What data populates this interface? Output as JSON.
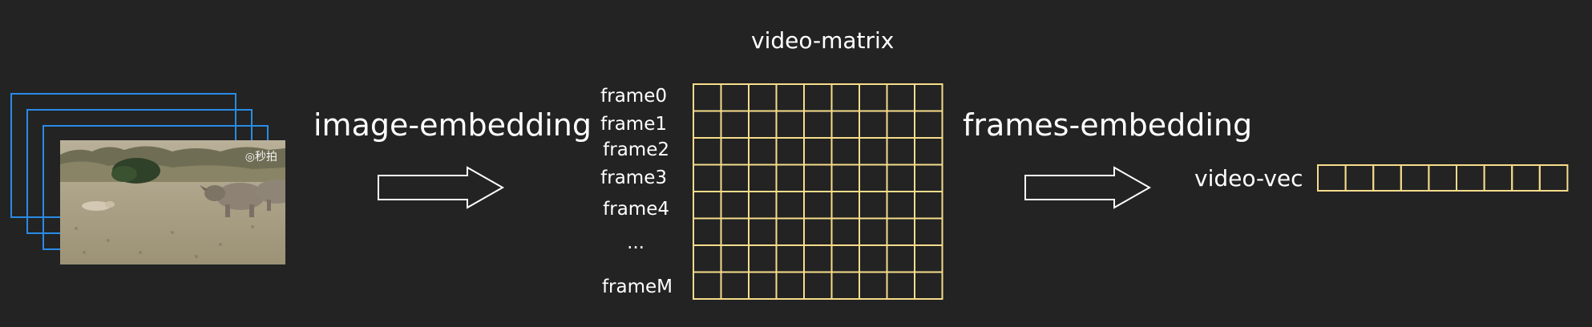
{
  "title": "video-matrix",
  "left_label": "image-embedding",
  "right_label": "frames-embedding",
  "vec_label": "video-vec",
  "photo_watermark": "◎秒拍",
  "row_labels": [
    "frame0",
    "frame1",
    "frame2",
    "frame3",
    "frame4",
    "...",
    "frameM"
  ],
  "matrix": {
    "rows": 8,
    "cols": 9
  },
  "vector": {
    "cells": 9
  },
  "colors": {
    "background": "#232323",
    "frame_border": "#2a8be6",
    "grid": "#f6dc8a",
    "text": "#ffffff",
    "arrow": "#ffffff"
  }
}
